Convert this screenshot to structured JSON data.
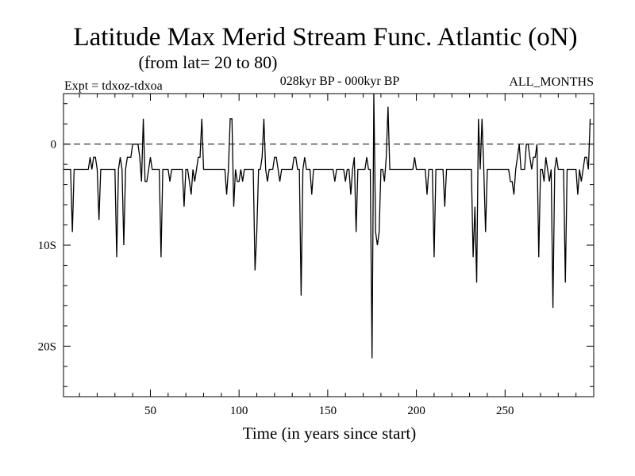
{
  "chart_data": {
    "type": "line",
    "title": "Latitude Max Merid Stream Func. Atlantic (oN)",
    "subtitle": "(from lat= 20 to 80)",
    "header_left": "Expt = tdxoz-tdxoa",
    "header_center": "028kyr BP - 000kyr BP",
    "header_right": "ALL_MONTHS",
    "xlabel": "Time (in years since start)",
    "ylabel": "",
    "xlim": [
      1,
      300
    ],
    "ylim": [
      -25,
      5
    ],
    "x_ticks": [
      50,
      100,
      150,
      200,
      250
    ],
    "x_tick_labels": [
      "50",
      "100",
      "150",
      "200",
      "250"
    ],
    "y_ticks": [
      0,
      -10,
      -20
    ],
    "y_tick_labels": [
      "0",
      "10S",
      "20S"
    ],
    "zero_line": 0,
    "grid": false,
    "series": [
      {
        "values": [
          -2.5,
          -2.5,
          -2.5,
          -2.5,
          -2.5,
          -8.7,
          -2.5,
          -2.5,
          -2.5,
          -2.5,
          -2.5,
          -2.5,
          -2.5,
          -2.5,
          -2.5,
          -1.3,
          -2.5,
          -1.3,
          -1.3,
          -2.5,
          -7.5,
          -2.5,
          -2.5,
          -2.5,
          -2.5,
          -2.5,
          -2.5,
          -2.5,
          -2.5,
          -2.5,
          -11.2,
          -2.5,
          -1.3,
          -2.5,
          -10.0,
          -2.5,
          -1.3,
          -1.3,
          -1.3,
          0,
          0,
          0,
          0,
          -1.3,
          -3.7,
          2.5,
          -3.7,
          -3.7,
          -2.5,
          -1.3,
          -2.5,
          -2.5,
          -2.5,
          -2.5,
          -2.5,
          -11.2,
          -2.5,
          -2.5,
          -2.5,
          -2.5,
          -3.7,
          -2.5,
          -2.5,
          -2.5,
          -2.5,
          -2.5,
          -2.5,
          -2.5,
          -6.2,
          -2.5,
          -2.5,
          -3.7,
          -5.0,
          -2.5,
          -3.7,
          -2.5,
          -1.3,
          -1.3,
          2.5,
          -2.5,
          -2.5,
          -2.5,
          -2.5,
          -2.5,
          -2.5,
          -2.5,
          -2.5,
          -2.5,
          -2.5,
          -2.5,
          -2.5,
          -2.5,
          -5.0,
          -2.5,
          2.5,
          2.5,
          -6.2,
          -2.5,
          -3.7,
          -3.7,
          -2.5,
          -3.7,
          -2.5,
          -2.5,
          -2.5,
          -2.5,
          -2.5,
          -2.5,
          -12.5,
          -8.7,
          -2.5,
          -2.5,
          -1.3,
          2.5,
          -2.5,
          -3.7,
          -2.5,
          -2.5,
          -2.5,
          -1.3,
          -1.3,
          -2.5,
          -3.7,
          -2.5,
          -2.5,
          -2.5,
          -2.5,
          -2.5,
          -2.5,
          -2.5,
          -1.3,
          -1.3,
          -2.5,
          -2.5,
          -15.0,
          -2.5,
          -1.3,
          -2.5,
          -2.5,
          -2.5,
          -5.0,
          -2.5,
          -2.5,
          -2.5,
          -2.5,
          -2.5,
          -2.5,
          -2.5,
          -2.5,
          -2.5,
          -2.5,
          -2.5,
          -2.5,
          -3.7,
          -2.5,
          -2.5,
          -2.5,
          -2.5,
          -2.5,
          -3.7,
          -2.5,
          -2.5,
          -5.0,
          -2.5,
          -1.3,
          -8.7,
          -2.5,
          -2.5,
          -2.5,
          -2.5,
          -2.5,
          -1.3,
          -2.5,
          -2.5,
          -21.2,
          5.0,
          -8.7,
          -10.0,
          -8.7,
          -2.5,
          -2.5,
          -3.7,
          -1.3,
          3.7,
          -2.5,
          -2.5,
          -2.5,
          -2.5,
          -2.5,
          -2.5,
          -2.5,
          -2.5,
          -2.5,
          -2.5,
          -2.5,
          -2.5,
          -2.5,
          -2.5,
          -1.3,
          -2.5,
          -2.5,
          -2.5,
          -2.5,
          -2.5,
          -2.5,
          -5.0,
          -2.5,
          -2.5,
          -2.5,
          -11.2,
          -2.5,
          -2.5,
          -2.5,
          -2.5,
          -2.5,
          -6.2,
          -2.5,
          -2.5,
          -2.5,
          -2.5,
          -2.5,
          -2.5,
          -2.5,
          -2.5,
          -2.5,
          -2.5,
          -2.5,
          -2.5,
          -2.5,
          -2.5,
          -2.5,
          -11.2,
          -6.2,
          -13.7,
          2.5,
          -2.5,
          2.5,
          -2.5,
          -8.7,
          -2.5,
          -2.5,
          -2.5,
          -2.5,
          -2.5,
          -2.5,
          -2.5,
          -2.5,
          -2.5,
          -2.5,
          -2.5,
          -2.5,
          -2.5,
          -3.7,
          -3.7,
          -5.0,
          -2.5,
          -1.3,
          0,
          -2.5,
          -2.5,
          -2.5,
          0,
          0,
          -1.3,
          -2.5,
          -1.3,
          -1.3,
          0,
          -11.2,
          -2.5,
          -2.5,
          -3.7,
          -1.3,
          -2.5,
          -3.7,
          -2.5,
          -16.2,
          -2.5,
          -1.3,
          -2.5,
          -2.5,
          -2.5,
          -2.5,
          -13.7,
          -2.5,
          -2.5,
          -2.5,
          -2.5,
          -2.5,
          -2.5,
          -5.0,
          -2.5,
          -3.7,
          -2.5,
          -1.3,
          -1.3,
          -2.5,
          2.5
        ]
      }
    ]
  }
}
